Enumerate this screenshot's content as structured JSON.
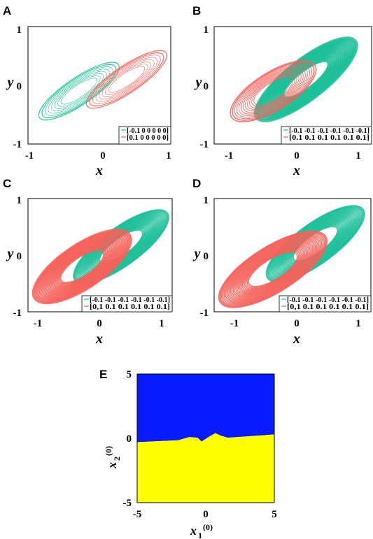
{
  "colors": {
    "teal": "#1dbf9a",
    "salmon": "#f4625a",
    "blue": "#0a1bff",
    "yellow": "#ffff00"
  },
  "chart_data": [
    {
      "panel": "A",
      "type": "line",
      "xlabel": "x",
      "ylabel": "y",
      "xlim": [
        -1.1,
        1.0
      ],
      "ylim": [
        -1,
        1
      ],
      "xticks": [
        "-1",
        "0",
        "1"
      ],
      "yticks": [
        "-1",
        "0",
        "1"
      ],
      "legend": {
        "placement": "bottom-right",
        "entries": [
          "[-0.1 0 0 0 0 0]",
          "[0.1 0 0 0 0 0]"
        ]
      },
      "series": [
        {
          "label": "[-0.1 0 0 0 0 0]",
          "color": "teal",
          "attractor": {
            "cx": -0.35,
            "cy": -0.1,
            "rx": 0.7,
            "ry": 0.23,
            "tilt": 34,
            "rings": 8,
            "bandPx": 0.7
          }
        },
        {
          "label": "[0.1 0 0 0 0 0]",
          "color": "salmon",
          "attractor": {
            "cx": 0.35,
            "cy": 0.1,
            "rx": 0.7,
            "ry": 0.23,
            "tilt": 34,
            "rings": 8,
            "bandPx": 0.7
          }
        }
      ]
    },
    {
      "panel": "B",
      "type": "line",
      "xlabel": "x",
      "ylabel": "y",
      "xlim": [
        -1.2,
        1.2
      ],
      "ylim": [
        -1,
        1
      ],
      "xticks": [
        "-1",
        "0",
        "1"
      ],
      "yticks": [
        "-1",
        "0",
        "1"
      ],
      "legend": {
        "placement": "bottom-right",
        "entries": [
          "[-0.1 -0.1 -0.1 -0.1 -0.1 -0.1]",
          "[0.1 0.1 0.1 0.1 0.1 0.1]"
        ]
      },
      "series": [
        {
          "label": "[-0.1 -0.1 -0.1 -0.1 -0.1 -0.1]",
          "color": "teal",
          "attractor": {
            "cx": 0.2,
            "cy": 0.1,
            "rx": 0.95,
            "ry": 0.33,
            "tilt": 38,
            "rings": 14,
            "bandPx": 4
          }
        },
        {
          "label": "[0.1 0.1 0.1 0.1 0.1 0.1]",
          "color": "salmon",
          "attractor": {
            "cx": -0.3,
            "cy": -0.1,
            "rx": 0.75,
            "ry": 0.32,
            "tilt": 32,
            "rings": 12,
            "bandPx": 1
          }
        }
      ]
    },
    {
      "panel": "C",
      "type": "line",
      "xlabel": "x",
      "ylabel": "y",
      "xlim": [
        -1.2,
        1.2
      ],
      "ylim": [
        -1,
        1
      ],
      "xticks": [
        "-1",
        "0",
        "1"
      ],
      "yticks": [
        "-1",
        "0",
        "1"
      ],
      "legend": {
        "placement": "bottom-right",
        "entries": [
          "[-0.1 -0.1 -0.1 -0.1 -0.1 -0.1]",
          "[0,1 0.1 0.1 0.1 0.1 0.1]"
        ]
      },
      "series": [
        {
          "label": "[-0.1 -0.1 -0.1 -0.1 -0.1 -0.1]",
          "color": "teal",
          "attractor": {
            "cx": 0.35,
            "cy": 0.15,
            "rx": 0.95,
            "ry": 0.33,
            "tilt": 36,
            "rings": 26,
            "bandPx": 1.5
          }
        },
        {
          "label": "[0,1 0.1 0.1 0.1 0.1 0.1]",
          "color": "salmon",
          "attractor": {
            "cx": -0.3,
            "cy": -0.2,
            "rx": 0.95,
            "ry": 0.38,
            "tilt": 34,
            "rings": 14,
            "bandPx": 3
          }
        }
      ]
    },
    {
      "panel": "D",
      "type": "line",
      "xlabel": "x",
      "ylabel": "y",
      "xlim": [
        -1.2,
        1.2
      ],
      "ylim": [
        -1,
        1
      ],
      "xticks": [
        "-1",
        "0",
        "1"
      ],
      "yticks": [
        "-1",
        "0",
        "1"
      ],
      "legend": {
        "placement": "bottom-right",
        "entries": [
          "[-0.1 -0.1 -0.1 -0.1 -0.1 -0.1]",
          "[0,1 0.1 0.1 0.1 0.1 0.1]"
        ]
      },
      "series": [
        {
          "label": "[-0.1 -0.1 -0.1 -0.1 -0.1 -0.1]",
          "color": "teal",
          "attractor": {
            "cx": 0.35,
            "cy": 0.2,
            "rx": 0.9,
            "ry": 0.35,
            "tilt": 36,
            "rings": 26,
            "bandPx": 1.5
          }
        },
        {
          "label": "[0,1 0.1 0.1 0.1 0.1 0.1]",
          "color": "salmon",
          "attractor": {
            "cx": -0.3,
            "cy": -0.25,
            "rx": 0.95,
            "ry": 0.4,
            "tilt": 32,
            "rings": 24,
            "bandPx": 1.5
          }
        }
      ]
    },
    {
      "panel": "E",
      "type": "heatmap",
      "xlabel": "x",
      "xlabel_sub": "1",
      "xlabel_sup": "(0)",
      "ylabel": "x",
      "ylabel_sub": "2",
      "ylabel_sup": "(0)",
      "xlim": [
        -5,
        5
      ],
      "ylim": [
        -5,
        5
      ],
      "xticks": [
        "-5",
        "0",
        "5"
      ],
      "yticks": [
        "-5",
        "0",
        "5"
      ],
      "regions": [
        {
          "name": "upper",
          "color": "blue"
        },
        {
          "name": "lower",
          "color": "yellow"
        }
      ],
      "boundary": [
        [
          -5,
          -0.3
        ],
        [
          -2,
          -0.15
        ],
        [
          -1.2,
          0.1
        ],
        [
          -0.6,
          0.05
        ],
        [
          -0.3,
          -0.25
        ],
        [
          0.2,
          0.1
        ],
        [
          0.7,
          0.4
        ],
        [
          1.1,
          0.2
        ],
        [
          1.6,
          0.05
        ],
        [
          3,
          0.15
        ],
        [
          5,
          0.3
        ]
      ]
    }
  ]
}
